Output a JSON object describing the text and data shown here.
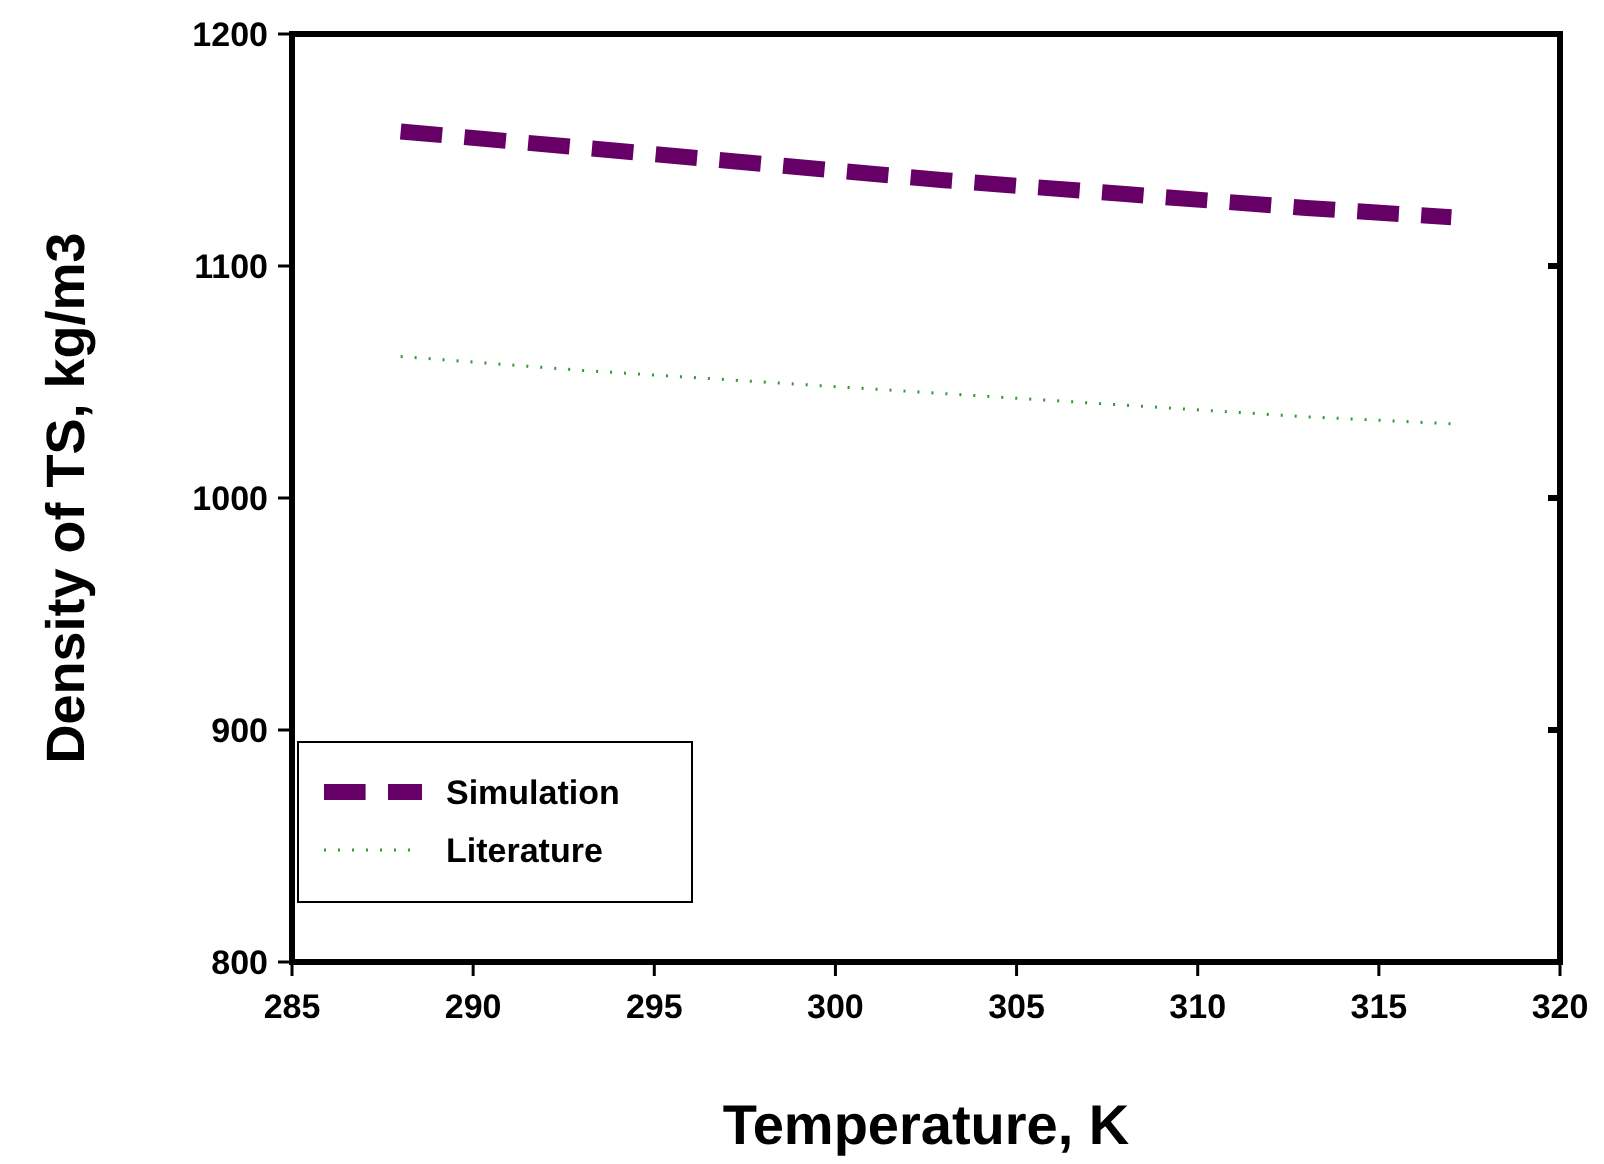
{
  "chart_data": {
    "type": "line",
    "xlabel": "Temperature, K",
    "ylabel": "Density of TS, kg/m3",
    "x": [
      288,
      293,
      298,
      303,
      308,
      313,
      317
    ],
    "series": [
      {
        "name": "Simulation",
        "color": "#660066",
        "line_style": "dashed",
        "values": [
          1158,
          1151,
          1144,
          1137,
          1131,
          1125,
          1121
        ]
      },
      {
        "name": "Literature",
        "color": "#339933",
        "line_style": "dotted",
        "values": [
          1061,
          1055,
          1050,
          1045,
          1040,
          1035,
          1032
        ]
      }
    ],
    "xlim": [
      285,
      320
    ],
    "xticks": [
      285,
      290,
      295,
      300,
      305,
      310,
      315,
      320
    ],
    "ylim": [
      800,
      1200
    ],
    "yticks": [
      800,
      900,
      1000,
      1100,
      1200
    ],
    "grid": false,
    "legend": "bottom left"
  }
}
